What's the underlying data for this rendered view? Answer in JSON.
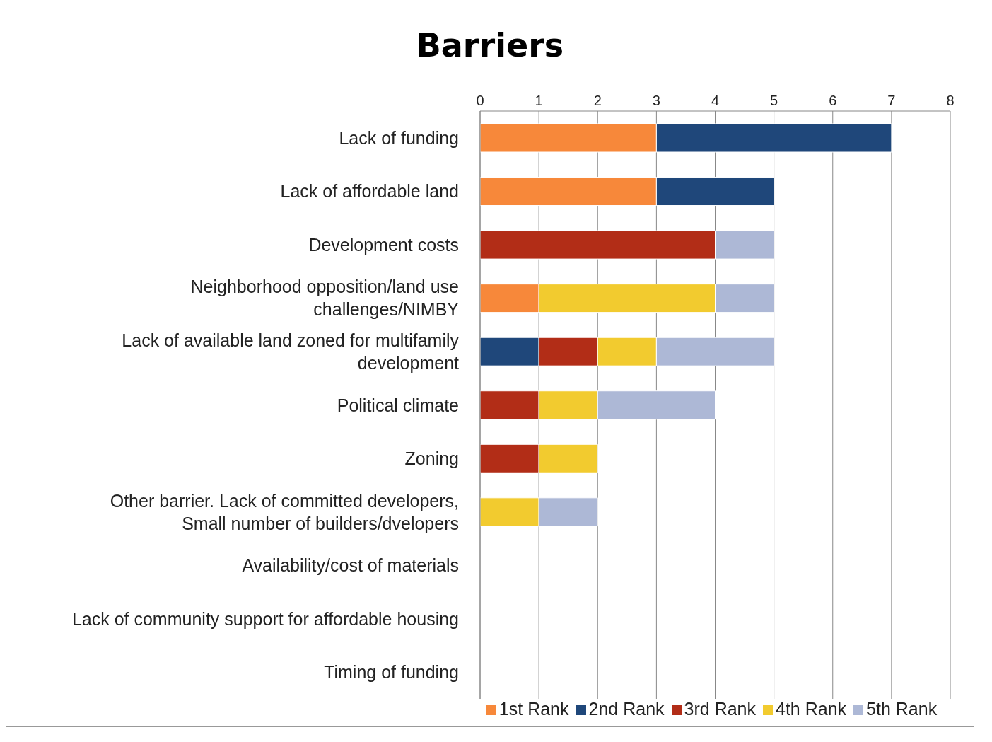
{
  "chart_data": {
    "type": "bar",
    "title": "Barriers",
    "orientation": "horizontal",
    "stacked": true,
    "categories": [
      "Lack of funding",
      "Lack of affordable land",
      "Development costs",
      "Neighborhood opposition/land use challenges/NIMBY",
      "Lack of available land zoned for multifamily development",
      "Political climate",
      "Zoning",
      "Other barrier. Lack of committed developers, Small number of builders/dvelopers",
      "Availability/cost of materials",
      "Lack of community support for affordable housing",
      "Timing of funding"
    ],
    "series": [
      {
        "name": "1st Rank",
        "color": "#f7883a",
        "values": [
          3,
          3,
          0,
          1,
          0,
          0,
          0,
          0,
          0,
          0,
          0
        ]
      },
      {
        "name": "2nd Rank",
        "color": "#1f477a",
        "values": [
          4,
          2,
          0,
          0,
          1,
          0,
          0,
          0,
          0,
          0,
          0
        ]
      },
      {
        "name": "3rd Rank",
        "color": "#b22d17",
        "values": [
          0,
          0,
          4,
          0,
          1,
          1,
          1,
          0,
          0,
          0,
          0
        ]
      },
      {
        "name": "4th Rank",
        "color": "#f2cb2f",
        "values": [
          0,
          0,
          0,
          3,
          1,
          1,
          1,
          1,
          0,
          0,
          0
        ]
      },
      {
        "name": "5th Rank",
        "color": "#adb8d6",
        "values": [
          0,
          0,
          1,
          1,
          2,
          2,
          0,
          1,
          0,
          0,
          0
        ]
      }
    ],
    "xlim": [
      0,
      8
    ],
    "xticks": [
      0,
      1,
      2,
      3,
      4,
      5,
      6,
      7,
      8
    ],
    "grid": "x",
    "legend": "bottom"
  }
}
